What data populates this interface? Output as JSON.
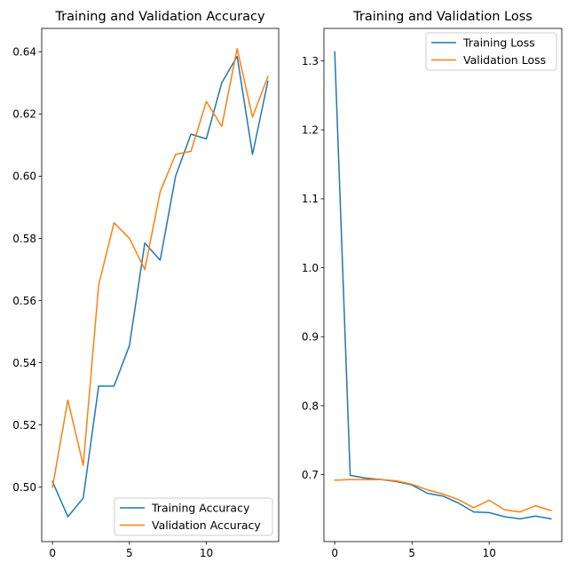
{
  "colors": {
    "training": "#1f77b4",
    "validation": "#ff7f0e"
  },
  "chart_data": [
    {
      "type": "line",
      "title": "Training and Validation Accuracy",
      "xlabel": "",
      "ylabel": "",
      "xlim": [
        -0.7,
        14.7
      ],
      "ylim": [
        0.4825,
        0.6475
      ],
      "xticks": [
        0,
        5,
        10
      ],
      "yticks": [
        0.5,
        0.52,
        0.54,
        0.56,
        0.58,
        0.6,
        0.62,
        0.64
      ],
      "ytick_labels": [
        "0.50",
        "0.52",
        "0.54",
        "0.56",
        "0.58",
        "0.60",
        "0.62",
        "0.64"
      ],
      "legend": "lower-right",
      "grid": false,
      "x": [
        0,
        1,
        2,
        3,
        4,
        5,
        6,
        7,
        8,
        9,
        10,
        11,
        12,
        13,
        14
      ],
      "series": [
        {
          "name": "Training Accuracy",
          "color": "#1f77b4",
          "values": [
            0.5018,
            0.4905,
            0.4965,
            0.5325,
            0.5325,
            0.5455,
            0.5785,
            0.573,
            0.6,
            0.6135,
            0.612,
            0.63,
            0.6385,
            0.607,
            0.6305
          ]
        },
        {
          "name": "Validation Accuracy",
          "color": "#ff7f0e",
          "values": [
            0.5,
            0.528,
            0.507,
            0.565,
            0.585,
            0.58,
            0.57,
            0.595,
            0.607,
            0.608,
            0.624,
            0.616,
            0.641,
            0.619,
            0.632
          ]
        }
      ]
    },
    {
      "type": "line",
      "title": "Training and Validation Loss",
      "xlabel": "",
      "ylabel": "",
      "xlim": [
        -0.7,
        14.7
      ],
      "ylim": [
        0.603,
        1.347
      ],
      "xticks": [
        0,
        5,
        10
      ],
      "yticks": [
        0.7,
        0.8,
        0.9,
        1.0,
        1.1,
        1.2,
        1.3
      ],
      "ytick_labels": [
        "0.7",
        "0.8",
        "0.9",
        "1.0",
        "1.1",
        "1.2",
        "1.3"
      ],
      "legend": "upper-right",
      "grid": false,
      "x": [
        0,
        1,
        2,
        3,
        4,
        5,
        6,
        7,
        8,
        9,
        10,
        11,
        12,
        13,
        14
      ],
      "series": [
        {
          "name": "Training Loss",
          "color": "#1f77b4",
          "values": [
            1.313,
            0.699,
            0.695,
            0.693,
            0.69,
            0.685,
            0.673,
            0.669,
            0.659,
            0.646,
            0.645,
            0.639,
            0.636,
            0.64,
            0.636
          ]
        },
        {
          "name": "Validation Loss",
          "color": "#ff7f0e",
          "values": [
            0.692,
            0.693,
            0.693,
            0.693,
            0.691,
            0.686,
            0.678,
            0.672,
            0.664,
            0.652,
            0.663,
            0.649,
            0.646,
            0.655,
            0.648
          ]
        }
      ]
    }
  ]
}
